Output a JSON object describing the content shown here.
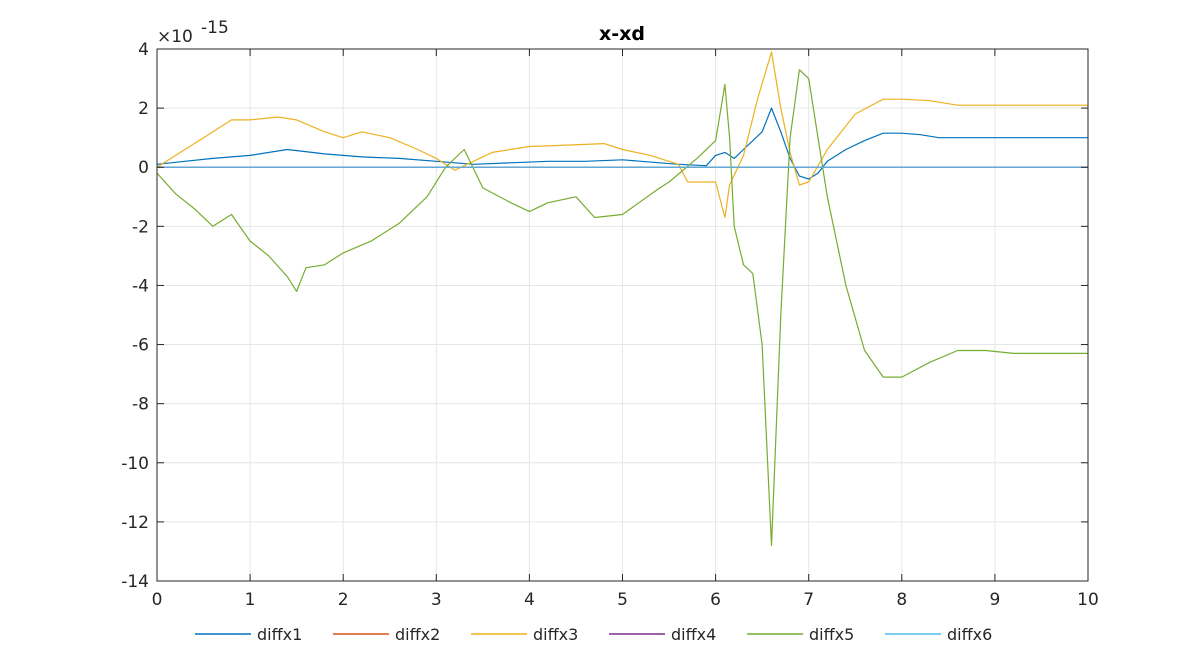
{
  "chart_data": {
    "type": "line",
    "title": "x-xd",
    "xlabel": "",
    "ylabel": "",
    "xlim": [
      0,
      10
    ],
    "ylim": [
      -14,
      4
    ],
    "y_exponent_label": "×10",
    "y_exponent_power": "-15",
    "xticks": [
      "0",
      "1",
      "2",
      "3",
      "4",
      "5",
      "6",
      "7",
      "8",
      "9",
      "10"
    ],
    "yticks": [
      "4",
      "2",
      "0",
      "-2",
      "-4",
      "-6",
      "-8",
      "-10",
      "-12",
      "-14"
    ],
    "grid": true,
    "legend_location": "bottom",
    "series": [
      {
        "name": "diffx1",
        "color": "#0072BD",
        "x": [
          0,
          0.3,
          0.6,
          1.0,
          1.4,
          1.8,
          2.2,
          2.6,
          3.0,
          3.4,
          3.8,
          4.2,
          4.6,
          5.0,
          5.4,
          5.6,
          5.9,
          6.0,
          6.1,
          6.2,
          6.3,
          6.5,
          6.6,
          6.7,
          6.8,
          6.9,
          7.0,
          7.1,
          7.2,
          7.4,
          7.6,
          7.8,
          8.0,
          8.2,
          8.4,
          9.0,
          10.0
        ],
        "y": [
          0.1,
          0.2,
          0.3,
          0.4,
          0.6,
          0.45,
          0.35,
          0.3,
          0.2,
          0.1,
          0.15,
          0.2,
          0.2,
          0.25,
          0.15,
          0.1,
          0.05,
          0.4,
          0.5,
          0.3,
          0.6,
          1.2,
          2.0,
          1.2,
          0.3,
          -0.3,
          -0.4,
          -0.2,
          0.2,
          0.6,
          0.9,
          1.15,
          1.15,
          1.1,
          1.0,
          1.0,
          1.0
        ]
      },
      {
        "name": "diffx2",
        "color": "#D95319",
        "x": [
          0,
          10
        ],
        "y": [
          0,
          0
        ]
      },
      {
        "name": "diffx3",
        "color": "#EDB120",
        "x": [
          0,
          0.2,
          0.5,
          0.8,
          1.0,
          1.3,
          1.5,
          1.8,
          2.0,
          2.2,
          2.5,
          2.8,
          3.0,
          3.2,
          3.4,
          3.6,
          4.0,
          4.4,
          4.8,
          5.0,
          5.3,
          5.6,
          5.7,
          6.0,
          6.1,
          6.15,
          6.3,
          6.45,
          6.6,
          6.7,
          6.8,
          6.9,
          7.0,
          7.2,
          7.5,
          7.8,
          8.0,
          8.3,
          8.6,
          9.0,
          10.0
        ],
        "y": [
          0,
          0.4,
          1.0,
          1.6,
          1.6,
          1.7,
          1.6,
          1.2,
          1.0,
          1.2,
          1.0,
          0.6,
          0.3,
          -0.1,
          0.2,
          0.5,
          0.7,
          0.75,
          0.8,
          0.6,
          0.4,
          0.1,
          -0.5,
          -0.5,
          -1.7,
          -0.6,
          0.4,
          2.3,
          3.9,
          2.0,
          0.5,
          -0.6,
          -0.5,
          0.6,
          1.8,
          2.3,
          2.3,
          2.25,
          2.1,
          2.1,
          2.1
        ]
      },
      {
        "name": "diffx4",
        "color": "#7E2F8E",
        "x": [
          0,
          10
        ],
        "y": [
          0,
          0
        ]
      },
      {
        "name": "diffx5",
        "color": "#77AC30",
        "x": [
          0,
          0.2,
          0.4,
          0.6,
          0.8,
          1.0,
          1.2,
          1.4,
          1.5,
          1.6,
          1.8,
          2.0,
          2.3,
          2.6,
          2.9,
          3.1,
          3.3,
          3.5,
          3.8,
          4.0,
          4.2,
          4.5,
          4.7,
          5.0,
          5.4,
          5.5,
          5.8,
          6.0,
          6.1,
          6.15,
          6.2,
          6.3,
          6.4,
          6.5,
          6.6,
          6.7,
          6.8,
          6.9,
          7.0,
          7.1,
          7.2,
          7.4,
          7.6,
          7.8,
          8.0,
          8.3,
          8.6,
          8.9,
          9.2,
          10.0
        ],
        "y": [
          -0.2,
          -0.9,
          -1.4,
          -2.0,
          -1.6,
          -2.5,
          -3.0,
          -3.7,
          -4.2,
          -3.4,
          -3.3,
          -2.9,
          -2.5,
          -1.9,
          -1.0,
          0.0,
          0.6,
          -0.7,
          -1.2,
          -1.5,
          -1.2,
          -1.0,
          -1.7,
          -1.6,
          -0.7,
          -0.5,
          0.3,
          0.9,
          2.8,
          1.0,
          -2.0,
          -3.3,
          -3.6,
          -6.0,
          -12.8,
          -5.0,
          1.0,
          3.3,
          3.0,
          1.0,
          -1.0,
          -4.0,
          -6.2,
          -7.1,
          -7.1,
          -6.6,
          -6.2,
          -6.2,
          -6.3,
          -6.3
        ]
      },
      {
        "name": "diffx6",
        "color": "#4DBEEE",
        "x": [
          0,
          10
        ],
        "y": [
          0,
          0
        ]
      }
    ]
  }
}
